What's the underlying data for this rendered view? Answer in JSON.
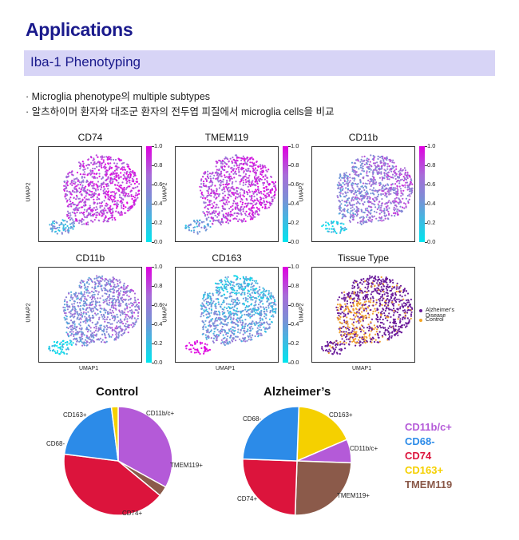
{
  "page": {
    "title": "Applications",
    "section": "Iba-1 Phenotyping",
    "bullets": [
      "· Microglia phenotype의 multiple subtypes",
      "· 알츠하이머 환자와 대조군 환자의 전두엽 피질에서 microglia cells을 비교"
    ]
  },
  "umap": {
    "ylabel": "UMAP2",
    "xlabel": "UMAP1",
    "colorbar_ticks": [
      "1.0",
      "0.8",
      "0.6",
      "0.4",
      "0.2",
      "0.0"
    ],
    "panels": [
      {
        "title": "CD74",
        "pattern": "high"
      },
      {
        "title": "TMEM119",
        "pattern": "high"
      },
      {
        "title": "CD11b",
        "pattern": "mid"
      },
      {
        "title": "CD11b",
        "pattern": "midlow"
      },
      {
        "title": "CD163",
        "pattern": "low"
      },
      {
        "title": "Tissue Type",
        "pattern": "tissue"
      }
    ],
    "tissue_legend": [
      {
        "label": "Alzheimer's Disease",
        "color": "#6a1b9a"
      },
      {
        "label": "Control",
        "color": "#f5a623"
      }
    ]
  },
  "chart_data": [
    {
      "type": "pie",
      "title": "Control",
      "slices": [
        {
          "label": "CD11b/c+",
          "value": 33,
          "color": "#b45ad8"
        },
        {
          "label": "TMEM119+",
          "value": 3,
          "color": "#8b5a4a"
        },
        {
          "label": "CD74+",
          "value": 41,
          "color": "#dc143c"
        },
        {
          "label": "CD68-",
          "value": 21,
          "color": "#2c8be8"
        },
        {
          "label": "CD163+",
          "value": 2,
          "color": "#f5d000"
        }
      ]
    },
    {
      "type": "pie",
      "title": "Alzheimer’s",
      "slices": [
        {
          "label": "CD163+",
          "value": 18,
          "color": "#f5d000"
        },
        {
          "label": "CD11b/c+",
          "value": 7,
          "color": "#b45ad8"
        },
        {
          "label": "TMEM119+",
          "value": 25,
          "color": "#8b5a4a"
        },
        {
          "label": "CD74+",
          "value": 25,
          "color": "#dc143c"
        },
        {
          "label": "CD68-",
          "value": 25,
          "color": "#2c8be8"
        }
      ]
    }
  ],
  "pie_legend": [
    {
      "label": "CD11b/c+",
      "color": "#b45ad8"
    },
    {
      "label": "CD68-",
      "color": "#2c8be8"
    },
    {
      "label": "CD74",
      "color": "#dc143c"
    },
    {
      "label": "CD163+",
      "color": "#f5d000"
    },
    {
      "label": "TMEM119",
      "color": "#8b5a4a"
    }
  ]
}
